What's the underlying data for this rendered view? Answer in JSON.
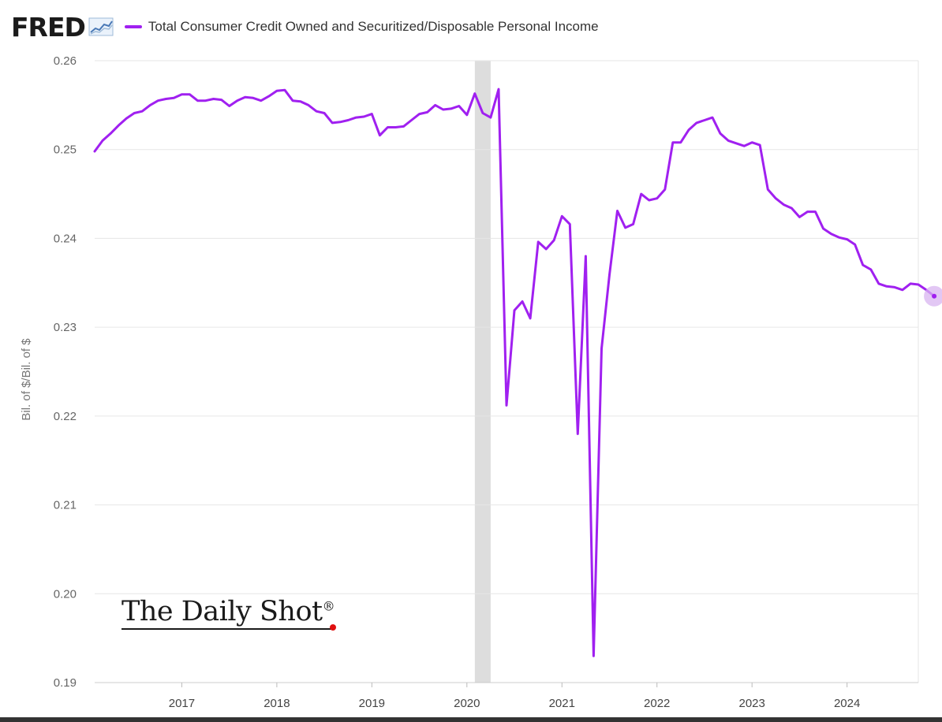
{
  "header": {
    "logo": "FRED",
    "legend_label": "Total Consumer Credit Owned and Securitized/Disposable Personal Income"
  },
  "colors": {
    "series": "#a020f0",
    "recession": "#dddddd",
    "grid": "#e6e6e6",
    "endpoint_halo": "#d8b4f0"
  },
  "icons": {
    "logo_graph": "line-graph-icon"
  },
  "watermark": {
    "text": "The Daily Shot",
    "mark": "®"
  },
  "chart_data": {
    "type": "line",
    "title": "",
    "ylabel": "Bil. of $/Bil. of $",
    "xlabel": "",
    "ylim": [
      0.19,
      0.26
    ],
    "xlim": [
      "2016-02",
      "2024-10"
    ],
    "y_ticks": [
      "0.19",
      "0.20",
      "0.21",
      "0.22",
      "0.23",
      "0.24",
      "0.25",
      "0.26"
    ],
    "x_ticks": [
      "2017",
      "2018",
      "2019",
      "2020",
      "2021",
      "2022",
      "2023",
      "2024"
    ],
    "grid": "horizontal",
    "legend_position": "top",
    "recession_bands": [
      [
        "2020-02",
        "2020-04"
      ]
    ],
    "series": [
      {
        "name": "Total Consumer Credit Owned and Securitized/Disposable Personal Income",
        "points": [
          [
            "2016-02",
            0.2498
          ],
          [
            "2016-03",
            0.251
          ],
          [
            "2016-04",
            0.2518
          ],
          [
            "2016-05",
            0.2527
          ],
          [
            "2016-06",
            0.2535
          ],
          [
            "2016-07",
            0.2541
          ],
          [
            "2016-08",
            0.2543
          ],
          [
            "2016-09",
            0.255
          ],
          [
            "2016-10",
            0.2555
          ],
          [
            "2016-11",
            0.2557
          ],
          [
            "2016-12",
            0.2558
          ],
          [
            "2017-01",
            0.2562
          ],
          [
            "2017-02",
            0.2562
          ],
          [
            "2017-03",
            0.2555
          ],
          [
            "2017-04",
            0.2555
          ],
          [
            "2017-05",
            0.2557
          ],
          [
            "2017-06",
            0.2556
          ],
          [
            "2017-07",
            0.2549
          ],
          [
            "2017-08",
            0.2555
          ],
          [
            "2017-09",
            0.2559
          ],
          [
            "2017-10",
            0.2558
          ],
          [
            "2017-11",
            0.2555
          ],
          [
            "2017-12",
            0.256
          ],
          [
            "2018-01",
            0.2566
          ],
          [
            "2018-02",
            0.2567
          ],
          [
            "2018-03",
            0.2555
          ],
          [
            "2018-04",
            0.2554
          ],
          [
            "2018-05",
            0.255
          ],
          [
            "2018-06",
            0.2543
          ],
          [
            "2018-07",
            0.2541
          ],
          [
            "2018-08",
            0.253
          ],
          [
            "2018-09",
            0.2531
          ],
          [
            "2018-10",
            0.2533
          ],
          [
            "2018-11",
            0.2536
          ],
          [
            "2018-12",
            0.2537
          ],
          [
            "2019-01",
            0.254
          ],
          [
            "2019-02",
            0.2516
          ],
          [
            "2019-03",
            0.2525
          ],
          [
            "2019-04",
            0.2525
          ],
          [
            "2019-05",
            0.2526
          ],
          [
            "2019-06",
            0.2533
          ],
          [
            "2019-07",
            0.254
          ],
          [
            "2019-08",
            0.2542
          ],
          [
            "2019-09",
            0.255
          ],
          [
            "2019-10",
            0.2545
          ],
          [
            "2019-11",
            0.2546
          ],
          [
            "2019-12",
            0.2549
          ],
          [
            "2020-01",
            0.2539
          ],
          [
            "2020-02",
            0.2563
          ],
          [
            "2020-03",
            0.2541
          ],
          [
            "2020-04",
            0.2536
          ],
          [
            "2020-05",
            0.2568
          ],
          [
            "2020-06",
            0.2212
          ],
          [
            "2020-07",
            0.2319
          ],
          [
            "2020-08",
            0.2329
          ],
          [
            "2020-09",
            0.231
          ],
          [
            "2020-10",
            0.2396
          ],
          [
            "2020-11",
            0.2388
          ],
          [
            "2020-12",
            0.2398
          ],
          [
            "2021-01",
            0.2425
          ],
          [
            "2021-02",
            0.2416
          ],
          [
            "2021-03",
            0.218
          ],
          [
            "2021-04",
            0.238
          ],
          [
            "2021-05",
            0.193
          ],
          [
            "2021-06",
            0.2276
          ],
          [
            "2021-07",
            0.2359
          ],
          [
            "2021-08",
            0.2431
          ],
          [
            "2021-09",
            0.2412
          ],
          [
            "2021-10",
            0.2416
          ],
          [
            "2021-11",
            0.245
          ],
          [
            "2021-12",
            0.2443
          ],
          [
            "2022-01",
            0.2445
          ],
          [
            "2022-02",
            0.2455
          ],
          [
            "2022-03",
            0.2508
          ],
          [
            "2022-04",
            0.2508
          ],
          [
            "2022-05",
            0.2522
          ],
          [
            "2022-06",
            0.253
          ],
          [
            "2022-07",
            0.2533
          ],
          [
            "2022-08",
            0.2536
          ],
          [
            "2022-09",
            0.2518
          ],
          [
            "2022-10",
            0.251
          ],
          [
            "2022-11",
            0.2507
          ],
          [
            "2022-12",
            0.2504
          ],
          [
            "2023-01",
            0.2508
          ],
          [
            "2023-02",
            0.2505
          ],
          [
            "2023-03",
            0.2455
          ],
          [
            "2023-04",
            0.2445
          ],
          [
            "2023-05",
            0.2438
          ],
          [
            "2023-06",
            0.2434
          ],
          [
            "2023-07",
            0.2424
          ],
          [
            "2023-08",
            0.243
          ],
          [
            "2023-09",
            0.243
          ],
          [
            "2023-10",
            0.2411
          ],
          [
            "2023-11",
            0.2405
          ],
          [
            "2023-12",
            0.2401
          ],
          [
            "2024-01",
            0.2399
          ],
          [
            "2024-02",
            0.2393
          ],
          [
            "2024-03",
            0.237
          ],
          [
            "2024-04",
            0.2365
          ],
          [
            "2024-05",
            0.2349
          ],
          [
            "2024-06",
            0.2346
          ],
          [
            "2024-07",
            0.2345
          ],
          [
            "2024-08",
            0.2342
          ],
          [
            "2024-09",
            0.2349
          ],
          [
            "2024-10",
            0.2348
          ],
          [
            "2024-11",
            0.2342
          ],
          [
            "2024-12",
            0.2335
          ]
        ]
      }
    ]
  }
}
